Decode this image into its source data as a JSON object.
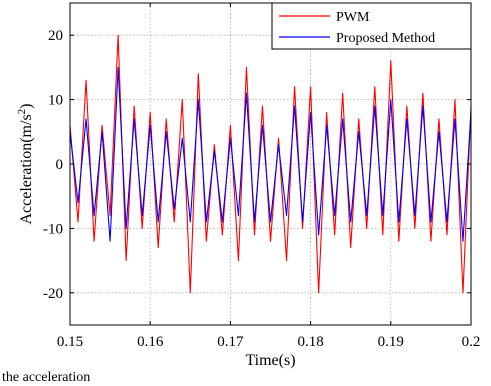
{
  "chart_data": {
    "type": "line",
    "xlabel": "Time(s)",
    "ylabel_main": "Acceleration(m/s",
    "ylabel_sup": "2",
    "ylabel_close": ")",
    "xlim": [
      0.15,
      0.2
    ],
    "ylim": [
      -25,
      25
    ],
    "xticks": [
      0.15,
      0.16,
      0.17,
      0.18,
      0.19,
      0.2
    ],
    "xtick_labels": [
      "0.15",
      "0.16",
      "0.17",
      "0.18",
      "0.19",
      "0.2"
    ],
    "yticks": [
      20,
      10,
      0,
      -10,
      -20
    ],
    "ytick_labels": [
      "20",
      "10",
      "0",
      "-10",
      "-20"
    ],
    "grid": true,
    "legend_position": "top-right",
    "series": [
      {
        "name": "PWM",
        "color": "#ff0000",
        "x": [
          0.15,
          0.151,
          0.152,
          0.153,
          0.154,
          0.155,
          0.156,
          0.157,
          0.158,
          0.159,
          0.16,
          0.161,
          0.162,
          0.163,
          0.164,
          0.165,
          0.166,
          0.167,
          0.168,
          0.169,
          0.17,
          0.171,
          0.172,
          0.173,
          0.174,
          0.175,
          0.176,
          0.177,
          0.178,
          0.179,
          0.18,
          0.181,
          0.182,
          0.183,
          0.184,
          0.185,
          0.186,
          0.187,
          0.188,
          0.189,
          0.19,
          0.191,
          0.192,
          0.193,
          0.194,
          0.195,
          0.196,
          0.197,
          0.198,
          0.199,
          0.2
        ],
        "y": [
          6,
          -9,
          13,
          -12,
          6,
          -8,
          20,
          -15,
          9,
          -10,
          8,
          -13,
          7,
          -9,
          10,
          -20,
          14,
          -12,
          3,
          -11,
          6,
          -15,
          15,
          -11,
          9,
          -12,
          4,
          -15,
          12,
          -10,
          12,
          -20,
          8,
          -11,
          11,
          -13,
          7,
          -10,
          12,
          -11,
          16,
          -12,
          9,
          -10,
          11,
          -12,
          7,
          -11,
          10,
          -20,
          9
        ]
      },
      {
        "name": "Proposed Method",
        "color": "#0000ff",
        "x": [
          0.15,
          0.151,
          0.152,
          0.153,
          0.154,
          0.155,
          0.156,
          0.157,
          0.158,
          0.159,
          0.16,
          0.161,
          0.162,
          0.163,
          0.164,
          0.165,
          0.166,
          0.167,
          0.168,
          0.169,
          0.17,
          0.171,
          0.172,
          0.173,
          0.174,
          0.175,
          0.176,
          0.177,
          0.178,
          0.179,
          0.18,
          0.181,
          0.182,
          0.183,
          0.184,
          0.185,
          0.186,
          0.187,
          0.188,
          0.189,
          0.19,
          0.191,
          0.192,
          0.193,
          0.194,
          0.195,
          0.196,
          0.197,
          0.198,
          0.199,
          0.2
        ],
        "y": [
          5,
          -6,
          7,
          -8,
          5,
          -12,
          15,
          -10,
          7,
          -8,
          6,
          -9,
          5,
          -7,
          4,
          -9,
          10,
          -9,
          2,
          -9,
          4,
          -8,
          11,
          -9,
          6,
          -9,
          3,
          -8,
          9,
          -9,
          8,
          -11,
          6,
          -8,
          7,
          -9,
          5,
          -8,
          9,
          -8,
          10,
          -9,
          7,
          -8,
          9,
          -9,
          5,
          -9,
          7,
          -12,
          8
        ]
      }
    ]
  },
  "caption": "the acceleration"
}
